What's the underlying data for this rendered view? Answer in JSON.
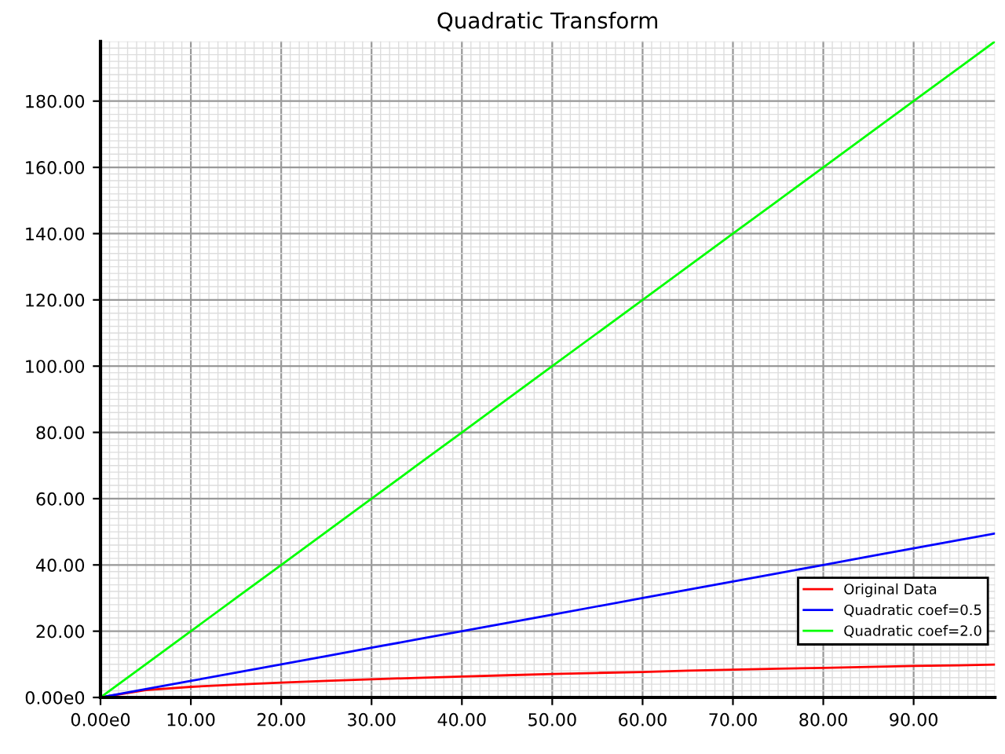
{
  "chart_data": {
    "type": "line",
    "title": "Quadratic Transform",
    "x": [
      0,
      5,
      10,
      15,
      20,
      25,
      30,
      35,
      40,
      45,
      50,
      55,
      60,
      65,
      70,
      75,
      80,
      85,
      90,
      95,
      99
    ],
    "series": [
      {
        "name": "Original Data",
        "color": "#ff0000",
        "values": [
          0,
          2.2,
          3.2,
          3.9,
          4.5,
          5.0,
          5.5,
          5.9,
          6.3,
          6.7,
          7.1,
          7.4,
          7.7,
          8.1,
          8.4,
          8.7,
          8.9,
          9.2,
          9.5,
          9.7,
          9.9
        ]
      },
      {
        "name": "Quadratic coef=0.5",
        "color": "#0000ff",
        "values": [
          0,
          2.5,
          5,
          7.5,
          10,
          12.5,
          15,
          17.5,
          20,
          22.5,
          25,
          27.5,
          30,
          32.5,
          35,
          37.5,
          40,
          42.5,
          45,
          47.5,
          49.5
        ]
      },
      {
        "name": "Quadratic coef=2.0",
        "color": "#00ff00",
        "values": [
          0,
          10,
          20,
          30,
          40,
          50,
          60,
          70,
          80,
          90,
          100,
          110,
          120,
          130,
          140,
          150,
          160,
          170,
          180,
          190,
          198
        ]
      }
    ],
    "xlim": [
      0,
      99
    ],
    "ylim": [
      0,
      198
    ],
    "xticks": [
      {
        "value": 0,
        "label": "0.00e0"
      },
      {
        "value": 10,
        "label": "10.00"
      },
      {
        "value": 20,
        "label": "20.00"
      },
      {
        "value": 30,
        "label": "30.00"
      },
      {
        "value": 40,
        "label": "40.00"
      },
      {
        "value": 50,
        "label": "50.00"
      },
      {
        "value": 60,
        "label": "60.00"
      },
      {
        "value": 70,
        "label": "70.00"
      },
      {
        "value": 80,
        "label": "80.00"
      },
      {
        "value": 90,
        "label": "90.00"
      }
    ],
    "yticks": [
      {
        "value": 0,
        "label": "0.00e0"
      },
      {
        "value": 20,
        "label": "20.00"
      },
      {
        "value": 40,
        "label": "40.00"
      },
      {
        "value": 60,
        "label": "60.00"
      },
      {
        "value": 80,
        "label": "80.00"
      },
      {
        "value": 100,
        "label": "100.00"
      },
      {
        "value": 120,
        "label": "120.00"
      },
      {
        "value": 140,
        "label": "140.00"
      },
      {
        "value": 160,
        "label": "160.00"
      },
      {
        "value": 180,
        "label": "180.00"
      }
    ],
    "grid": true,
    "legend": "bottom right",
    "line_style": "solid"
  }
}
